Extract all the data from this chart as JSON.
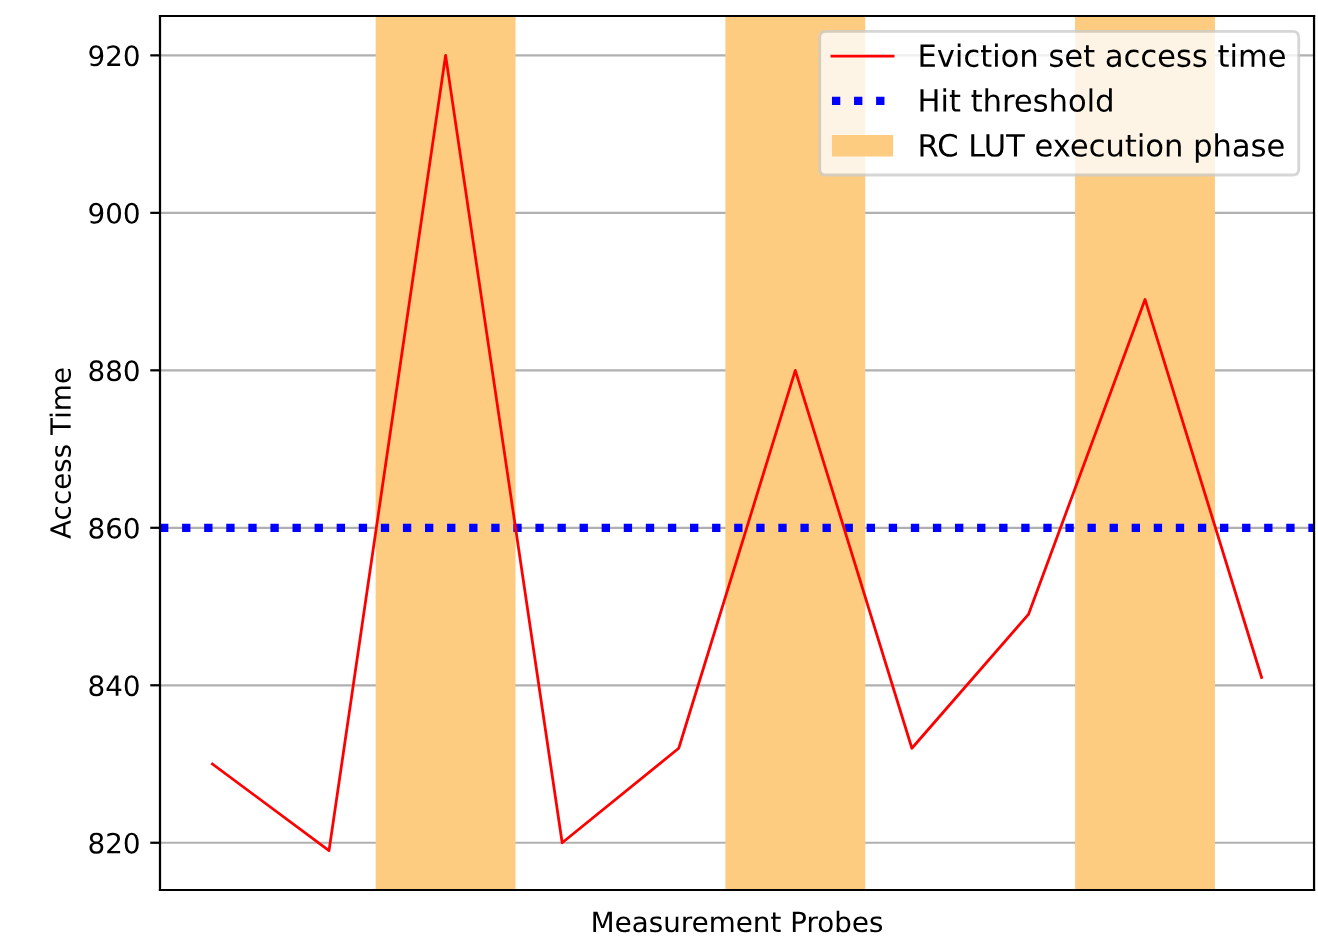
{
  "chart_data": {
    "type": "line",
    "xlabel": "Measurement Probes",
    "ylabel": "Access Time",
    "categories": [
      null,
      null,
      null,
      null,
      null,
      null,
      null,
      null,
      null,
      null
    ],
    "series": [
      {
        "name": "Eviction set access time",
        "color": "#ff0000",
        "values": [
          830,
          819,
          920,
          820,
          832,
          880,
          832,
          849,
          889,
          841
        ]
      }
    ],
    "ref_lines": [
      {
        "axis": "y",
        "value": 860,
        "label": "Hit threshold",
        "color": "#0000ff",
        "line_style": "dotted"
      }
    ],
    "annotations": [
      "RC LUT execution phase"
    ],
    "ylim": [
      814,
      925
    ],
    "yticks": [
      820,
      840,
      860,
      880,
      900,
      920
    ],
    "grid": "y",
    "legend": "top right",
    "marker": "none",
    "line_style": "solid"
  }
}
